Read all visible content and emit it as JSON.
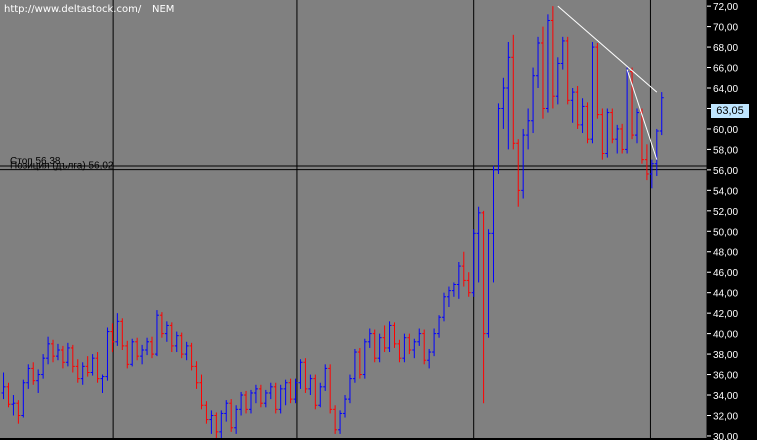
{
  "header": {
    "url": "http://www.deltastock.com/",
    "symbol": "NEM"
  },
  "colors": {
    "background": "#000000",
    "plot_area": "#808080",
    "grid": "#000000",
    "up_bar": "#0000ff",
    "down_bar": "#ff0000",
    "trendline": "#ffffff",
    "axis_text": "#ffffff",
    "badge_bg": "#bfe6ff",
    "hline_label": "#000000"
  },
  "price_badge": "63,05",
  "horizontal_lines": [
    {
      "label": "Стоп 56,38",
      "value": 56.38
    },
    {
      "label": "Позиция (дълга) 56,02",
      "value": 56.02
    }
  ],
  "chart_data": {
    "type": "ohlc",
    "title": "",
    "y_axis_side": "right",
    "ylim": [
      29.8,
      72.6
    ],
    "y_ticks": [
      30,
      32,
      34,
      36,
      38,
      40,
      42,
      44,
      46,
      48,
      50,
      52,
      54,
      56,
      58,
      60,
      62,
      64,
      66,
      68,
      70,
      72
    ],
    "y_tick_labels": [
      "30,00",
      "32,00",
      "34,00",
      "36,00",
      "38,00",
      "40,00",
      "42,00",
      "44,00",
      "46,00",
      "48,00",
      "50,00",
      "52,00",
      "54,00",
      "56,00",
      "58,00",
      "60,00",
      "62,00",
      "64,00",
      "66,00",
      "68,00",
      "70,00",
      "72,00"
    ],
    "x_range": [
      0,
      100
    ],
    "vertical_gridlines_at": [
      16,
      42,
      67,
      92
    ],
    "bars": [
      [
        0.5,
        34.2,
        36.2,
        33.6,
        34.8
      ],
      [
        1.2,
        34.8,
        35.2,
        32.8,
        33.1
      ],
      [
        1.9,
        33.1,
        34.0,
        32.0,
        33.2
      ],
      [
        2.6,
        33.2,
        33.5,
        31.2,
        32.0
      ],
      [
        3.3,
        32.0,
        35.5,
        31.8,
        35.2
      ],
      [
        4.0,
        35.2,
        37.0,
        34.6,
        36.6
      ],
      [
        4.7,
        36.6,
        37.2,
        35.0,
        35.4
      ],
      [
        5.4,
        35.4,
        36.5,
        34.2,
        36.0
      ],
      [
        6.1,
        36.0,
        38.0,
        35.6,
        37.6
      ],
      [
        6.8,
        37.6,
        39.7,
        37.0,
        39.0
      ],
      [
        7.5,
        39.0,
        39.4,
        37.2,
        37.8
      ],
      [
        8.2,
        37.8,
        39.0,
        37.4,
        38.4
      ],
      [
        8.9,
        38.4,
        38.8,
        36.6,
        37.2
      ],
      [
        9.6,
        37.2,
        39.1,
        36.8,
        38.6
      ],
      [
        10.3,
        38.6,
        38.9,
        36.2,
        36.8
      ],
      [
        11.0,
        36.8,
        37.5,
        35.2,
        35.6
      ],
      [
        11.7,
        35.6,
        37.2,
        35.0,
        36.8
      ],
      [
        12.4,
        36.8,
        37.8,
        35.8,
        36.2
      ],
      [
        13.1,
        36.2,
        38.0,
        35.9,
        37.6
      ],
      [
        13.8,
        37.6,
        38.2,
        35.2,
        35.6
      ],
      [
        14.5,
        35.6,
        36.0,
        34.2,
        35.8
      ],
      [
        15.2,
        35.8,
        40.6,
        35.4,
        40.2
      ],
      [
        15.9,
        40.2,
        41.0,
        38.2,
        39.2
      ],
      [
        16.6,
        39.2,
        42.0,
        38.8,
        41.2
      ],
      [
        17.3,
        41.2,
        41.5,
        38.4,
        38.8
      ],
      [
        18.0,
        38.8,
        39.3,
        36.6,
        37.0
      ],
      [
        18.7,
        37.0,
        39.5,
        36.8,
        39.2
      ],
      [
        19.4,
        39.2,
        39.6,
        37.4,
        37.8
      ],
      [
        20.1,
        37.8,
        38.9,
        37.0,
        38.4
      ],
      [
        20.8,
        38.4,
        39.6,
        37.9,
        39.2
      ],
      [
        21.5,
        39.2,
        39.7,
        37.6,
        38.0
      ],
      [
        22.2,
        38.0,
        42.3,
        37.8,
        41.8
      ],
      [
        22.9,
        41.8,
        42.1,
        39.6,
        40.0
      ],
      [
        23.6,
        40.0,
        41.2,
        39.2,
        40.8
      ],
      [
        24.3,
        40.8,
        41.1,
        38.2,
        38.8
      ],
      [
        25.0,
        38.8,
        40.2,
        38.2,
        39.8
      ],
      [
        25.7,
        39.8,
        40.1,
        37.6,
        38.0
      ],
      [
        26.4,
        38.0,
        39.2,
        37.4,
        38.8
      ],
      [
        27.1,
        38.8,
        39.1,
        36.4,
        36.8
      ],
      [
        27.8,
        36.8,
        37.3,
        34.6,
        35.2
      ],
      [
        28.5,
        35.2,
        36.0,
        32.6,
        33.0
      ],
      [
        29.2,
        33.0,
        33.4,
        31.2,
        31.6
      ],
      [
        29.9,
        31.6,
        32.5,
        30.2,
        32.0
      ],
      [
        30.6,
        32.0,
        32.3,
        29.8,
        30.4
      ],
      [
        31.3,
        30.4,
        32.5,
        29.8,
        32.2
      ],
      [
        32.0,
        32.2,
        33.5,
        31.4,
        33.2
      ],
      [
        32.7,
        33.2,
        33.6,
        30.4,
        30.8
      ],
      [
        33.4,
        30.8,
        33.0,
        30.2,
        32.6
      ],
      [
        34.1,
        32.6,
        34.3,
        32.0,
        34.0
      ],
      [
        34.8,
        34.0,
        34.4,
        32.2,
        32.6
      ],
      [
        35.5,
        32.6,
        34.5,
        32.2,
        34.2
      ],
      [
        36.2,
        34.2,
        35.0,
        33.2,
        34.6
      ],
      [
        36.9,
        34.6,
        35.0,
        32.8,
        33.2
      ],
      [
        37.6,
        33.2,
        34.5,
        32.8,
        34.2
      ],
      [
        38.3,
        34.2,
        35.2,
        33.6,
        34.8
      ],
      [
        39.0,
        34.8,
        35.2,
        32.2,
        32.6
      ],
      [
        39.7,
        32.6,
        35.0,
        32.2,
        34.6
      ],
      [
        40.4,
        34.6,
        35.5,
        33.0,
        35.2
      ],
      [
        41.1,
        35.2,
        35.6,
        33.2,
        33.6
      ],
      [
        41.8,
        33.6,
        35.6,
        33.2,
        35.2
      ],
      [
        42.5,
        35.2,
        37.5,
        34.6,
        37.2
      ],
      [
        43.2,
        37.2,
        37.6,
        34.2,
        34.6
      ],
      [
        43.9,
        34.6,
        36.0,
        34.0,
        35.6
      ],
      [
        44.6,
        35.6,
        36.0,
        32.6,
        33.0
      ],
      [
        45.3,
        33.0,
        35.2,
        32.8,
        34.8
      ],
      [
        46.0,
        34.8,
        37.0,
        34.4,
        36.6
      ],
      [
        46.7,
        36.6,
        37.0,
        32.2,
        32.6
      ],
      [
        47.4,
        32.6,
        33.0,
        30.2,
        30.6
      ],
      [
        48.1,
        30.6,
        32.5,
        30.2,
        32.2
      ],
      [
        48.8,
        32.2,
        34.0,
        31.8,
        33.6
      ],
      [
        49.5,
        33.6,
        36.0,
        33.2,
        35.6
      ],
      [
        50.2,
        35.6,
        38.5,
        35.2,
        38.2
      ],
      [
        50.9,
        38.2,
        38.6,
        35.6,
        36.0
      ],
      [
        51.6,
        36.0,
        39.5,
        35.6,
        39.2
      ],
      [
        52.3,
        39.2,
        40.5,
        38.6,
        40.0
      ],
      [
        53.0,
        40.0,
        40.4,
        37.2,
        37.6
      ],
      [
        53.7,
        37.6,
        40.0,
        37.2,
        39.6
      ],
      [
        54.4,
        39.6,
        40.8,
        38.2,
        38.6
      ],
      [
        55.1,
        38.6,
        41.2,
        38.2,
        40.8
      ],
      [
        55.8,
        40.8,
        41.1,
        38.6,
        39.0
      ],
      [
        56.5,
        39.0,
        39.4,
        37.2,
        37.6
      ],
      [
        57.2,
        37.6,
        40.0,
        37.2,
        39.6
      ],
      [
        57.9,
        39.6,
        40.0,
        38.0,
        38.4
      ],
      [
        58.6,
        38.4,
        39.5,
        37.6,
        39.2
      ],
      [
        59.3,
        39.2,
        40.5,
        38.8,
        40.0
      ],
      [
        60.0,
        40.0,
        40.4,
        37.0,
        37.4
      ],
      [
        60.7,
        37.4,
        38.5,
        36.6,
        38.2
      ],
      [
        61.4,
        38.2,
        40.5,
        37.8,
        40.0
      ],
      [
        62.1,
        40.0,
        41.8,
        39.6,
        41.6
      ],
      [
        62.8,
        41.6,
        44.0,
        41.2,
        43.6
      ],
      [
        63.5,
        43.6,
        44.6,
        42.6,
        44.2
      ],
      [
        64.2,
        44.2,
        45.0,
        43.6,
        44.8
      ],
      [
        64.9,
        44.8,
        47.0,
        43.4,
        46.6
      ],
      [
        65.6,
        46.6,
        48.0,
        44.6,
        45.2
      ],
      [
        66.3,
        45.2,
        46.0,
        43.6,
        44.0
      ],
      [
        67.0,
        44.0,
        50.2,
        43.6,
        49.8
      ],
      [
        67.7,
        49.8,
        52.4,
        45.0,
        51.8
      ],
      [
        68.4,
        51.8,
        52.0,
        33.2,
        40.0
      ],
      [
        69.1,
        40.0,
        50.2,
        39.6,
        49.8
      ],
      [
        69.8,
        49.8,
        56.4,
        45.0,
        56.0
      ],
      [
        70.5,
        56.0,
        62.5,
        55.6,
        62.0
      ],
      [
        71.2,
        62.0,
        65.0,
        60.0,
        64.0
      ],
      [
        71.9,
        64.0,
        68.5,
        58.0,
        67.0
      ],
      [
        72.6,
        67.0,
        69.2,
        58.0,
        58.6
      ],
      [
        73.3,
        58.6,
        59.0,
        52.4,
        54.0
      ],
      [
        74.0,
        54.0,
        60.0,
        53.2,
        59.4
      ],
      [
        74.7,
        59.4,
        62.0,
        58.0,
        60.8
      ],
      [
        75.4,
        60.8,
        66.0,
        59.6,
        65.2
      ],
      [
        76.1,
        65.2,
        69.0,
        64.0,
        68.4
      ],
      [
        76.8,
        68.4,
        70.0,
        61.0,
        62.0
      ],
      [
        77.5,
        62.0,
        71.2,
        61.6,
        70.6
      ],
      [
        78.2,
        70.6,
        72.0,
        62.0,
        63.2
      ],
      [
        78.9,
        63.2,
        67.0,
        62.4,
        66.4
      ],
      [
        79.6,
        66.4,
        69.0,
        65.8,
        68.6
      ],
      [
        80.3,
        68.6,
        69.0,
        62.4,
        62.8
      ],
      [
        81.0,
        62.8,
        64.0,
        60.6,
        63.6
      ],
      [
        81.7,
        63.6,
        64.2,
        60.0,
        60.4
      ],
      [
        82.4,
        60.4,
        63.0,
        59.6,
        62.2
      ],
      [
        83.1,
        62.2,
        62.6,
        58.6,
        59.0
      ],
      [
        83.8,
        59.0,
        68.5,
        58.6,
        68.0
      ],
      [
        84.5,
        68.0,
        68.4,
        61.0,
        61.4
      ],
      [
        85.2,
        61.4,
        62.0,
        57.0,
        57.6
      ],
      [
        85.9,
        57.6,
        62.0,
        57.2,
        61.6
      ],
      [
        86.6,
        61.6,
        62.0,
        58.6,
        59.0
      ],
      [
        87.3,
        59.0,
        60.4,
        57.6,
        60.0
      ],
      [
        88.0,
        60.0,
        60.5,
        57.6,
        58.0
      ],
      [
        88.7,
        58.0,
        66.0,
        57.6,
        65.6
      ],
      [
        89.4,
        65.6,
        66.0,
        59.0,
        59.4
      ],
      [
        90.1,
        59.4,
        62.0,
        58.6,
        61.6
      ],
      [
        90.8,
        61.6,
        62.0,
        56.6,
        57.0
      ],
      [
        91.5,
        57.0,
        58.5,
        55.0,
        55.6
      ],
      [
        92.2,
        55.6,
        57.0,
        54.2,
        56.6
      ],
      [
        92.9,
        56.6,
        60.0,
        55.4,
        59.8
      ],
      [
        93.6,
        59.8,
        63.6,
        59.4,
        63.05
      ]
    ],
    "trendlines": [
      {
        "points": [
          [
            78.9,
            72.0
          ],
          [
            92.9,
            63.6
          ]
        ]
      },
      {
        "points": [
          [
            88.7,
            65.8
          ],
          [
            92.9,
            57.0
          ]
        ]
      }
    ]
  }
}
